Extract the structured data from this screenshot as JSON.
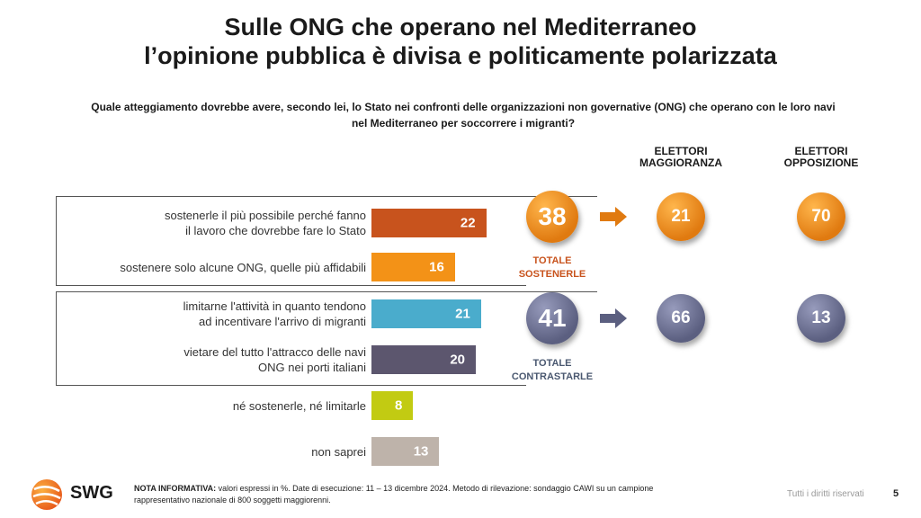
{
  "title_line1": "Sulle ONG che operano nel Mediterraneo",
  "title_line2": "l’opinione pubblica è divisa e politicamente polarizzata",
  "question_line1": "Quale atteggiamento dovrebbe avere, secondo lei, lo Stato nei confronti delle organizzazioni non governative (ONG) che operano con le loro navi",
  "question_line2": "nel Mediterraneo per soccorrere i migranti?",
  "col_majority": [
    "ELETTORI",
    "MAGGIORANZA"
  ],
  "col_opposition": [
    "ELETTORI",
    "OPPOSIZIONE"
  ],
  "chart_data": {
    "type": "bar",
    "orientation": "horizontal",
    "unit": "%",
    "categories": [
      [
        "sostenerle il più possibile perché fanno",
        "il lavoro che dovrebbe fare lo Stato"
      ],
      [
        "sostenere solo alcune ONG, quelle più affidabili"
      ],
      [
        "limitarne l'attività in quanto tendono",
        "ad incentivare l'arrivo di migranti"
      ],
      [
        "vietare del tutto l'attracco delle navi",
        "ONG nei porti italiani"
      ],
      [
        "né sostenerle, né limitarle"
      ],
      [
        "non saprei"
      ]
    ],
    "values": [
      22,
      16,
      21,
      20,
      8,
      13
    ],
    "colors": [
      "#c8531d",
      "#f39217",
      "#4aaccc",
      "#5c566e",
      "#c2cb12",
      "#beb3aa"
    ],
    "groups": [
      {
        "label": [
          "TOTALE",
          "SOSTENERLE"
        ],
        "total": 38,
        "majority": 21,
        "opposition": 70,
        "color": "#e07a10",
        "label_color": "#c8531d"
      },
      {
        "label": [
          "TOTALE",
          "CONTRASTARLE"
        ],
        "total": 41,
        "majority": 66,
        "opposition": 13,
        "color": "#5b5f80",
        "label_color": "#4a5870"
      }
    ]
  },
  "note_bold": "NOTA INFORMATIVA:",
  "note_line1": " valori espressi in %. Date di esecuzione: 11 – 13 dicembre 2024. Metodo di rilevazione: sondaggio CAWI su un campione",
  "note_line2": "rappresentativo nazionale di 800 soggetti maggiorenni.",
  "brand": "SWG",
  "rights": "Tutti i diritti riservati",
  "page_number": "5"
}
